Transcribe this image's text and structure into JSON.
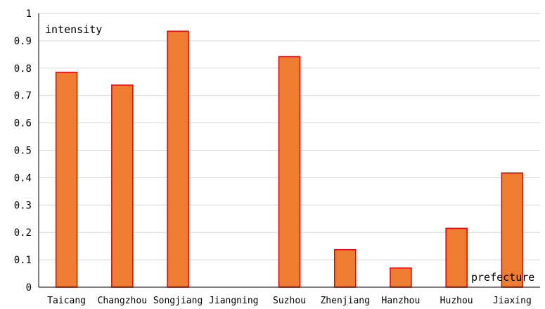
{
  "chart_data": {
    "type": "bar",
    "title": "",
    "xlabel": "prefecture",
    "ylabel": "intensity",
    "categories": [
      "Taicang",
      "Changzhou",
      "Songjiang",
      "Jiangning",
      "Suzhou",
      "Zhenjiang",
      "Hanzhou",
      "Huzhou",
      "Jiaxing"
    ],
    "values": [
      0.785,
      0.738,
      0.935,
      0,
      0.842,
      0.137,
      0.07,
      0.215,
      0.417
    ],
    "ylim": [
      0,
      1
    ],
    "yticks": [
      "0",
      "0.1",
      "0.2",
      "0.3",
      "0.4",
      "0.5",
      "0.6",
      "0.7",
      "0.8",
      "0.9",
      "1"
    ],
    "grid": true,
    "colors": {
      "bar_fill": "#ed7d31",
      "bar_stroke": "#e60000",
      "grid": "#d9d9d9",
      "axis": "#000000"
    }
  }
}
